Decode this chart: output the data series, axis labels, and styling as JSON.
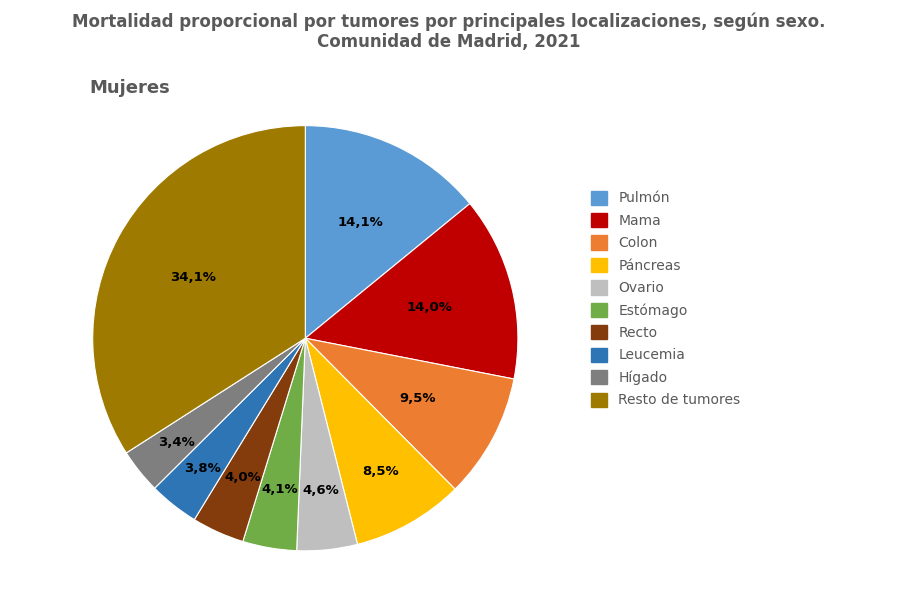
{
  "title": "Mortalidad proporcional por tumores por principales localizaciones, según sexo.\nComunidad de Madrid, 2021",
  "subtitle": "Mujeres",
  "labels": [
    "Pulmón",
    "Mama",
    "Colon",
    "Páncreas",
    "Ovario",
    "Estómago",
    "Recto",
    "Leucemia",
    "Hígado",
    "Resto de tumores"
  ],
  "values": [
    14.1,
    14.0,
    9.5,
    8.5,
    4.6,
    4.1,
    4.0,
    3.8,
    3.4,
    34.1
  ],
  "colors": [
    "#5B9BD5",
    "#C00000",
    "#ED7D31",
    "#FFC000",
    "#BFBFBF",
    "#70AD47",
    "#843C0C",
    "#2E75B6",
    "#7F7F7F",
    "#9E7B00"
  ],
  "pct_labels": [
    "14,1%",
    "14,0%",
    "9,5%",
    "8,5%",
    "4,6%",
    "4,1%",
    "4,0%",
    "3,8%",
    "3,4%",
    "34,1%"
  ],
  "title_fontsize": 12,
  "subtitle_fontsize": 13,
  "pct_fontsize": 9.5,
  "legend_fontsize": 10,
  "title_color": "#595959",
  "label_color": "#595959"
}
